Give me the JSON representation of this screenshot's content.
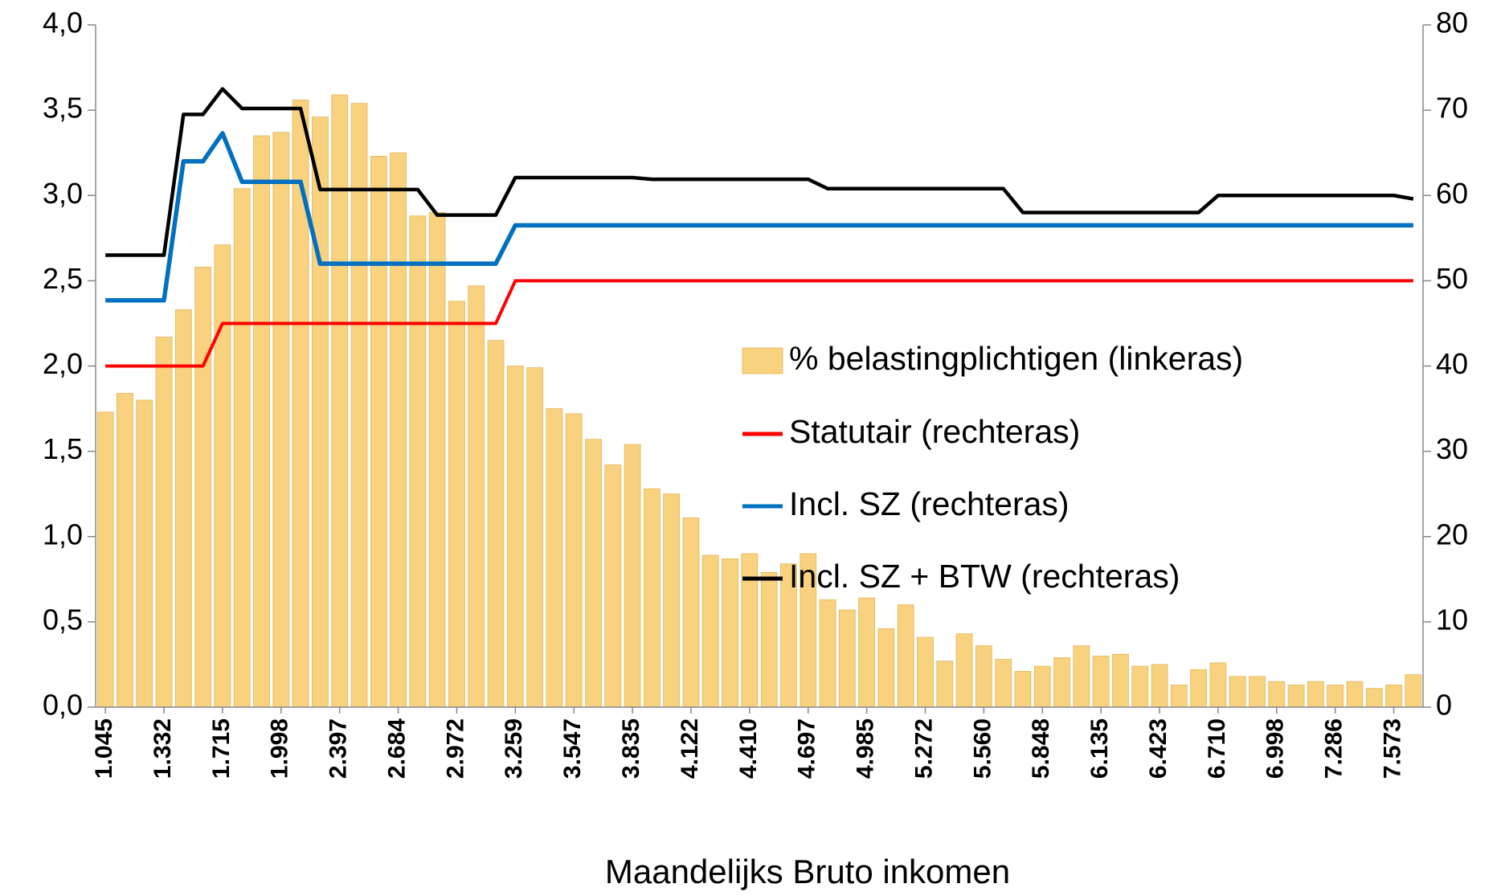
{
  "chart_data": {
    "type": "bar",
    "xlabel": "Maandelijks Bruto inkomen",
    "categories": [
      "1.045",
      null,
      null,
      "1.332",
      null,
      null,
      "1.715",
      null,
      null,
      "1.998",
      null,
      null,
      "2.397",
      null,
      null,
      "2.684",
      null,
      null,
      "2.972",
      null,
      null,
      "3.259",
      null,
      null,
      "3.547",
      null,
      null,
      "3.835",
      null,
      null,
      "4.122",
      null,
      null,
      "4.410",
      null,
      null,
      "4.697",
      null,
      null,
      "4.985",
      null,
      null,
      "5.272",
      null,
      null,
      "5.560",
      null,
      null,
      "5.848",
      null,
      null,
      "6.135",
      null,
      null,
      "6.423",
      null,
      null,
      "6.710",
      null,
      null,
      "6.998",
      null,
      null,
      "7.286",
      null,
      null,
      "7.573",
      null
    ],
    "series": [
      {
        "name": "% belastingplichtigen (linkeras)",
        "type": "bar",
        "color": "#f9d27f",
        "values": [
          1.73,
          1.84,
          1.8,
          2.17,
          2.33,
          2.58,
          2.71,
          3.04,
          3.35,
          3.37,
          3.56,
          3.46,
          3.59,
          3.54,
          3.23,
          3.25,
          2.88,
          2.9,
          2.38,
          2.47,
          2.15,
          2.0,
          1.99,
          1.75,
          1.72,
          1.57,
          1.42,
          1.54,
          1.28,
          1.25,
          1.11,
          0.89,
          0.87,
          0.9,
          0.79,
          0.84,
          0.9,
          0.63,
          0.57,
          0.64,
          0.46,
          0.6,
          0.41,
          0.27,
          0.43,
          0.36,
          0.28,
          0.21,
          0.24,
          0.29,
          0.36,
          0.3,
          0.31,
          0.24,
          0.25,
          0.13,
          0.22,
          0.26,
          0.18,
          0.18,
          0.15,
          0.13,
          0.15,
          0.13,
          0.15,
          0.11,
          0.13,
          0.19
        ]
      },
      {
        "name": "Statutair (rechteras)",
        "type": "line",
        "axis": "y2",
        "color": "#ff0000",
        "values": [
          40,
          40,
          40,
          40,
          40,
          40,
          45,
          45,
          45,
          45,
          45,
          45,
          45,
          45,
          45,
          45,
          45,
          45,
          45,
          45,
          45,
          50,
          50,
          50,
          50,
          50,
          50,
          50,
          50,
          50,
          50,
          50,
          50,
          50,
          50,
          50,
          50,
          50,
          50,
          50,
          50,
          50,
          50,
          50,
          50,
          50,
          50,
          50,
          50,
          50,
          50,
          50,
          50,
          50,
          50,
          50,
          50,
          50,
          50,
          50,
          50,
          50,
          50,
          50,
          50,
          50,
          50,
          50
        ]
      },
      {
        "name": "Incl. SZ (rechteras)",
        "type": "line",
        "axis": "y2",
        "color": "#0070c0",
        "values": [
          47.7,
          47.7,
          47.7,
          47.7,
          64,
          64,
          67.3,
          61.6,
          61.6,
          61.6,
          61.6,
          52,
          52,
          52,
          52,
          52,
          52,
          52,
          52,
          52,
          52,
          56.5,
          56.5,
          56.5,
          56.5,
          56.5,
          56.5,
          56.5,
          56.5,
          56.5,
          56.5,
          56.5,
          56.5,
          56.5,
          56.5,
          56.5,
          56.5,
          56.5,
          56.5,
          56.5,
          56.5,
          56.5,
          56.5,
          56.5,
          56.5,
          56.5,
          56.5,
          56.5,
          56.5,
          56.5,
          56.5,
          56.5,
          56.5,
          56.5,
          56.5,
          56.5,
          56.5,
          56.5,
          56.5,
          56.5,
          56.5,
          56.5,
          56.5,
          56.5,
          56.5,
          56.5,
          56.5,
          56.5
        ]
      },
      {
        "name": "Incl. SZ + BTW (rechteras)",
        "type": "line",
        "axis": "y2",
        "color": "#000000",
        "values": [
          53,
          53,
          53,
          53,
          69.5,
          69.5,
          72.5,
          70.2,
          70.2,
          70.2,
          70.2,
          60.7,
          60.7,
          60.7,
          60.7,
          60.7,
          60.7,
          57.7,
          57.7,
          57.7,
          57.7,
          62.1,
          62.1,
          62.1,
          62.1,
          62.1,
          62.1,
          62.1,
          61.9,
          61.9,
          61.9,
          61.9,
          61.9,
          61.9,
          61.9,
          61.9,
          61.9,
          60.8,
          60.8,
          60.8,
          60.8,
          60.8,
          60.8,
          60.8,
          60.8,
          60.8,
          60.8,
          58,
          58,
          58,
          58,
          58,
          58,
          58,
          58,
          58,
          58,
          60,
          60,
          60,
          60,
          60,
          60,
          60,
          60,
          60,
          60,
          59.6
        ]
      }
    ],
    "ylim": [
      0,
      4
    ],
    "yticks": [
      {
        "value": 0,
        "label": "0,0"
      },
      {
        "value": 0.5,
        "label": "0,5"
      },
      {
        "value": 1,
        "label": "1,0"
      },
      {
        "value": 1.5,
        "label": "1,5"
      },
      {
        "value": 2,
        "label": "2,0"
      },
      {
        "value": 2.5,
        "label": "2,5"
      },
      {
        "value": 3,
        "label": "3,0"
      },
      {
        "value": 3.5,
        "label": "3,5"
      },
      {
        "value": 4,
        "label": "4,0"
      }
    ],
    "y2lim": [
      0,
      80
    ],
    "y2ticks": [
      0,
      10,
      20,
      30,
      40,
      50,
      60,
      70,
      80
    ],
    "grid": false
  }
}
